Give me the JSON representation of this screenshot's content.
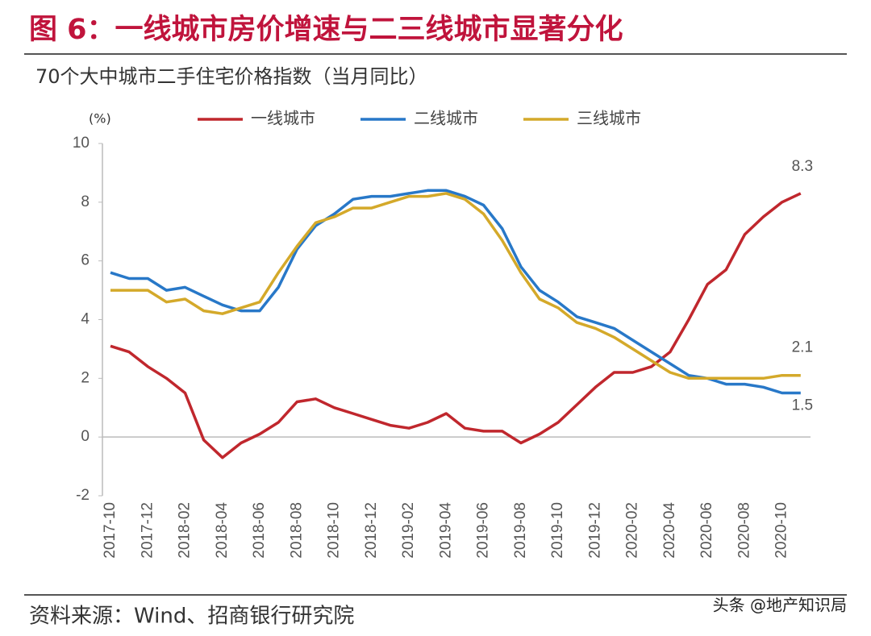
{
  "chart_data": {
    "type": "line",
    "title": "图 6：一线城市房价增速与二三线城市显著分化",
    "subtitle": "70个大中城市二手住宅价格指数（当月同比）",
    "y_label": "(%)",
    "source": "资料来源：Wind、招商银行研究院",
    "watermark": "头条 @地产知识局",
    "categories": [
      "2017-10",
      null,
      "2017-12",
      null,
      "2018-02",
      null,
      "2018-04",
      null,
      "2018-06",
      null,
      "2018-08",
      null,
      "2018-10",
      null,
      "2018-12",
      null,
      "2019-02",
      null,
      "2019-04",
      null,
      "2019-06",
      null,
      "2019-08",
      null,
      "2019-10",
      null,
      "2019-12",
      null,
      "2020-02",
      null,
      "2020-04",
      null,
      "2020-06",
      null,
      "2020-08",
      null,
      "2020-10",
      null
    ],
    "series": [
      {
        "name": "一线城市",
        "color": "#c0272d",
        "values": [
          3.1,
          2.9,
          2.4,
          2.0,
          1.5,
          -0.1,
          -0.7,
          -0.2,
          0.1,
          0.5,
          1.2,
          1.3,
          1.0,
          0.8,
          0.6,
          0.4,
          0.3,
          0.5,
          0.8,
          0.3,
          0.2,
          0.2,
          -0.2,
          0.1,
          0.5,
          1.1,
          1.7,
          2.2,
          2.2,
          2.4,
          2.9,
          4.0,
          5.2,
          5.7,
          6.9,
          7.5,
          8.0,
          8.3
        ]
      },
      {
        "name": "二线城市",
        "color": "#2878c8",
        "values": [
          5.6,
          5.4,
          5.4,
          5.0,
          5.1,
          4.8,
          4.5,
          4.3,
          4.3,
          5.1,
          6.4,
          7.2,
          7.6,
          8.1,
          8.2,
          8.2,
          8.3,
          8.4,
          8.4,
          8.2,
          7.9,
          7.1,
          5.8,
          5.0,
          4.6,
          4.1,
          3.9,
          3.7,
          3.3,
          2.9,
          2.5,
          2.1,
          2.0,
          1.8,
          1.8,
          1.7,
          1.5,
          1.5
        ]
      },
      {
        "name": "三线城市",
        "color": "#d4a92a",
        "values": [
          5.0,
          5.0,
          5.0,
          4.6,
          4.7,
          4.3,
          4.2,
          4.4,
          4.6,
          5.6,
          6.5,
          7.3,
          7.5,
          7.8,
          7.8,
          8.0,
          8.2,
          8.2,
          8.3,
          8.1,
          7.6,
          6.7,
          5.6,
          4.7,
          4.4,
          3.9,
          3.7,
          3.4,
          3.0,
          2.6,
          2.2,
          2.0,
          2.0,
          2.0,
          2.0,
          2.0,
          2.1,
          2.1
        ]
      }
    ],
    "ylim": [
      -2,
      10
    ],
    "yticks": [
      -2,
      0,
      2,
      4,
      6,
      8,
      10
    ],
    "grid": false
  }
}
